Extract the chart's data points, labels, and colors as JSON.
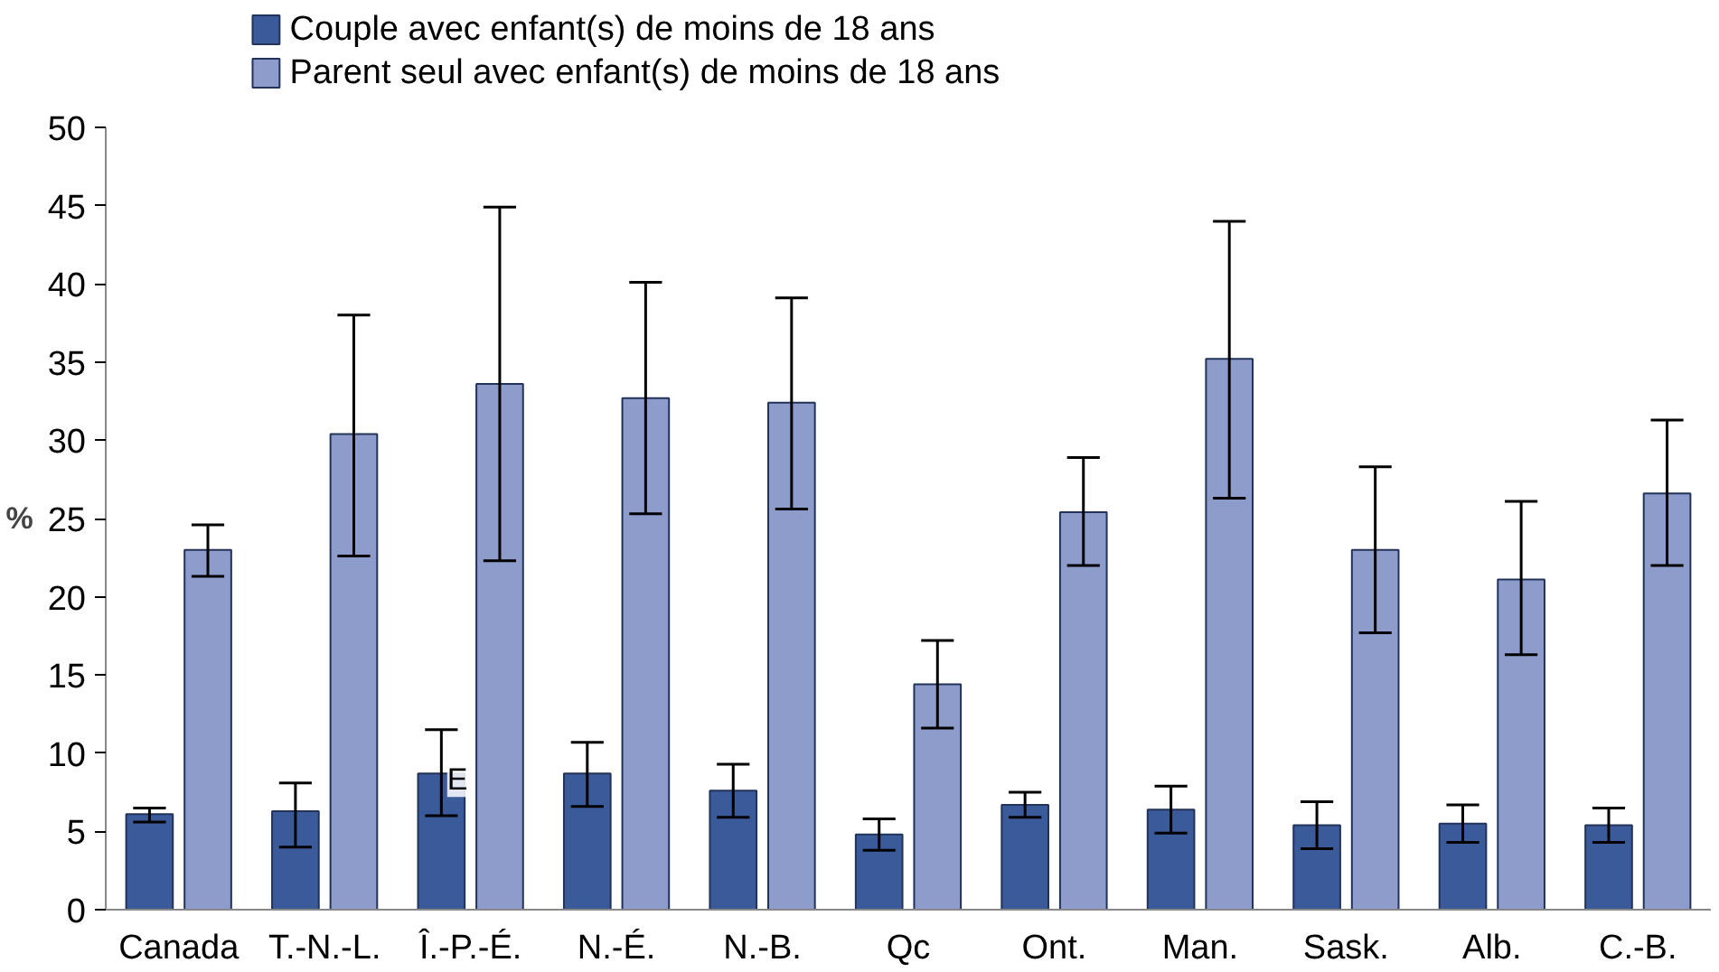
{
  "chart_data": {
    "type": "bar",
    "ylabel": "%",
    "categories": [
      "Canada",
      "T.-N.-L.",
      "Î.-P.-É.",
      "N.-É.",
      "N.-B.",
      "Qc",
      "Ont.",
      "Man.",
      "Sask.",
      "Alb.",
      "C.-B."
    ],
    "series": [
      {
        "name": "Couple avec enfant(s) de moins de 18 ans",
        "color": "#3b5a9a",
        "values": [
          6.1,
          6.3,
          8.7,
          8.7,
          7.6,
          4.8,
          6.7,
          6.4,
          5.4,
          5.5,
          5.4
        ],
        "errors": [
          [
            5.6,
            6.5
          ],
          [
            4.0,
            8.1
          ],
          [
            6.0,
            11.5
          ],
          [
            6.6,
            10.7
          ],
          [
            5.9,
            9.3
          ],
          [
            3.8,
            5.8
          ],
          [
            5.9,
            7.5
          ],
          [
            4.9,
            7.9
          ],
          [
            3.9,
            6.9
          ],
          [
            4.3,
            6.7
          ],
          [
            4.3,
            6.5
          ]
        ]
      },
      {
        "name": "Parent seul avec enfant(s) de moins de 18 ans",
        "color": "#8e9ccb",
        "values": [
          23.0,
          30.4,
          33.6,
          32.7,
          32.4,
          14.4,
          25.4,
          35.2,
          23.0,
          21.1,
          26.6
        ],
        "errors": [
          [
            21.3,
            24.6
          ],
          [
            22.6,
            38.0
          ],
          [
            22.3,
            44.9
          ],
          [
            25.3,
            40.1
          ],
          [
            25.6,
            39.1
          ],
          [
            11.6,
            17.2
          ],
          [
            22.0,
            28.9
          ],
          [
            26.3,
            44.0
          ],
          [
            17.7,
            28.3
          ],
          [
            16.3,
            26.1
          ],
          [
            22.0,
            31.3
          ]
        ]
      }
    ],
    "ylim": [
      0,
      50
    ],
    "yticks": [
      0,
      5,
      10,
      15,
      20,
      25,
      30,
      35,
      40,
      45,
      50
    ],
    "annotations": [
      {
        "text": "E",
        "x": "Î.-P.-É.",
        "y": 8.3
      }
    ],
    "grid": false,
    "legend": "top left"
  }
}
